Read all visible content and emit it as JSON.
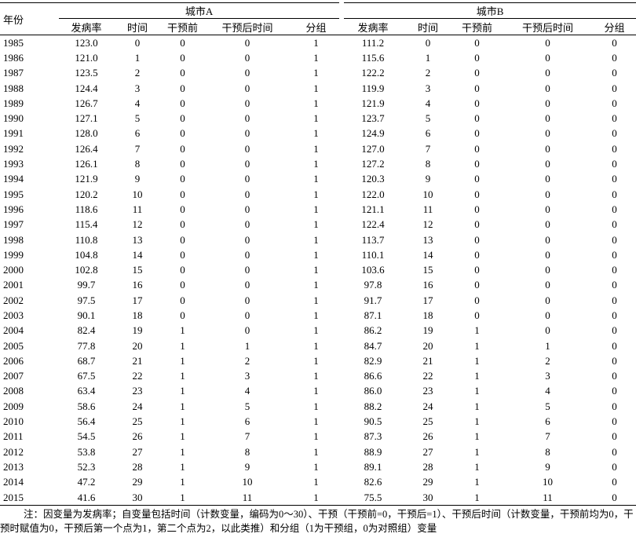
{
  "header": {
    "year": "年份",
    "groups": [
      {
        "name": "城市A",
        "columns": [
          "发病率",
          "时间",
          "干预前",
          "干预后时间",
          "分组"
        ]
      },
      {
        "name": "城市B",
        "columns": [
          "发病率",
          "时间",
          "干预前",
          "干预后时间",
          "分组"
        ]
      }
    ]
  },
  "rows": [
    [
      "1985",
      "123.0",
      "0",
      "0",
      "0",
      "1",
      "111.2",
      "0",
      "0",
      "0",
      "0"
    ],
    [
      "1986",
      "121.0",
      "1",
      "0",
      "0",
      "1",
      "115.6",
      "1",
      "0",
      "0",
      "0"
    ],
    [
      "1987",
      "123.5",
      "2",
      "0",
      "0",
      "1",
      "122.2",
      "2",
      "0",
      "0",
      "0"
    ],
    [
      "1988",
      "124.4",
      "3",
      "0",
      "0",
      "1",
      "119.9",
      "3",
      "0",
      "0",
      "0"
    ],
    [
      "1989",
      "126.7",
      "4",
      "0",
      "0",
      "1",
      "121.9",
      "4",
      "0",
      "0",
      "0"
    ],
    [
      "1990",
      "127.1",
      "5",
      "0",
      "0",
      "1",
      "123.7",
      "5",
      "0",
      "0",
      "0"
    ],
    [
      "1991",
      "128.0",
      "6",
      "0",
      "0",
      "1",
      "124.9",
      "6",
      "0",
      "0",
      "0"
    ],
    [
      "1992",
      "126.4",
      "7",
      "0",
      "0",
      "1",
      "127.0",
      "7",
      "0",
      "0",
      "0"
    ],
    [
      "1993",
      "126.1",
      "8",
      "0",
      "0",
      "1",
      "127.2",
      "8",
      "0",
      "0",
      "0"
    ],
    [
      "1994",
      "121.9",
      "9",
      "0",
      "0",
      "1",
      "120.3",
      "9",
      "0",
      "0",
      "0"
    ],
    [
      "1995",
      "120.2",
      "10",
      "0",
      "0",
      "1",
      "122.0",
      "10",
      "0",
      "0",
      "0"
    ],
    [
      "1996",
      "118.6",
      "11",
      "0",
      "0",
      "1",
      "121.1",
      "11",
      "0",
      "0",
      "0"
    ],
    [
      "1997",
      "115.4",
      "12",
      "0",
      "0",
      "1",
      "122.4",
      "12",
      "0",
      "0",
      "0"
    ],
    [
      "1998",
      "110.8",
      "13",
      "0",
      "0",
      "1",
      "113.7",
      "13",
      "0",
      "0",
      "0"
    ],
    [
      "1999",
      "104.8",
      "14",
      "0",
      "0",
      "1",
      "110.1",
      "14",
      "0",
      "0",
      "0"
    ],
    [
      "2000",
      "102.8",
      "15",
      "0",
      "0",
      "1",
      "103.6",
      "15",
      "0",
      "0",
      "0"
    ],
    [
      "2001",
      "99.7",
      "16",
      "0",
      "0",
      "1",
      "97.8",
      "16",
      "0",
      "0",
      "0"
    ],
    [
      "2002",
      "97.5",
      "17",
      "0",
      "0",
      "1",
      "91.7",
      "17",
      "0",
      "0",
      "0"
    ],
    [
      "2003",
      "90.1",
      "18",
      "0",
      "0",
      "1",
      "87.1",
      "18",
      "0",
      "0",
      "0"
    ],
    [
      "2004",
      "82.4",
      "19",
      "1",
      "0",
      "1",
      "86.2",
      "19",
      "1",
      "0",
      "0"
    ],
    [
      "2005",
      "77.8",
      "20",
      "1",
      "1",
      "1",
      "84.7",
      "20",
      "1",
      "1",
      "0"
    ],
    [
      "2006",
      "68.7",
      "21",
      "1",
      "2",
      "1",
      "82.9",
      "21",
      "1",
      "2",
      "0"
    ],
    [
      "2007",
      "67.5",
      "22",
      "1",
      "3",
      "1",
      "86.6",
      "22",
      "1",
      "3",
      "0"
    ],
    [
      "2008",
      "63.4",
      "23",
      "1",
      "4",
      "1",
      "86.0",
      "23",
      "1",
      "4",
      "0"
    ],
    [
      "2009",
      "58.6",
      "24",
      "1",
      "5",
      "1",
      "88.2",
      "24",
      "1",
      "5",
      "0"
    ],
    [
      "2010",
      "56.4",
      "25",
      "1",
      "6",
      "1",
      "90.5",
      "25",
      "1",
      "6",
      "0"
    ],
    [
      "2011",
      "54.5",
      "26",
      "1",
      "7",
      "1",
      "87.3",
      "26",
      "1",
      "7",
      "0"
    ],
    [
      "2012",
      "53.8",
      "27",
      "1",
      "8",
      "1",
      "88.9",
      "27",
      "1",
      "8",
      "0"
    ],
    [
      "2013",
      "52.3",
      "28",
      "1",
      "9",
      "1",
      "89.1",
      "28",
      "1",
      "9",
      "0"
    ],
    [
      "2014",
      "47.2",
      "29",
      "1",
      "10",
      "1",
      "82.6",
      "29",
      "1",
      "10",
      "0"
    ],
    [
      "2015",
      "41.6",
      "30",
      "1",
      "11",
      "1",
      "75.5",
      "30",
      "1",
      "11",
      "0"
    ]
  ],
  "footnote": "注：因变量为发病率；自变量包括时间（计数变量，编码为0～30）、干预（干预前=0，干预后=1）、干预后时间（计数变量，干预前均为0，干预时赋值为0，干预后第一个点为1，第二个点为2，以此类推）和分组（1为干预组，0为对照组）变量"
}
